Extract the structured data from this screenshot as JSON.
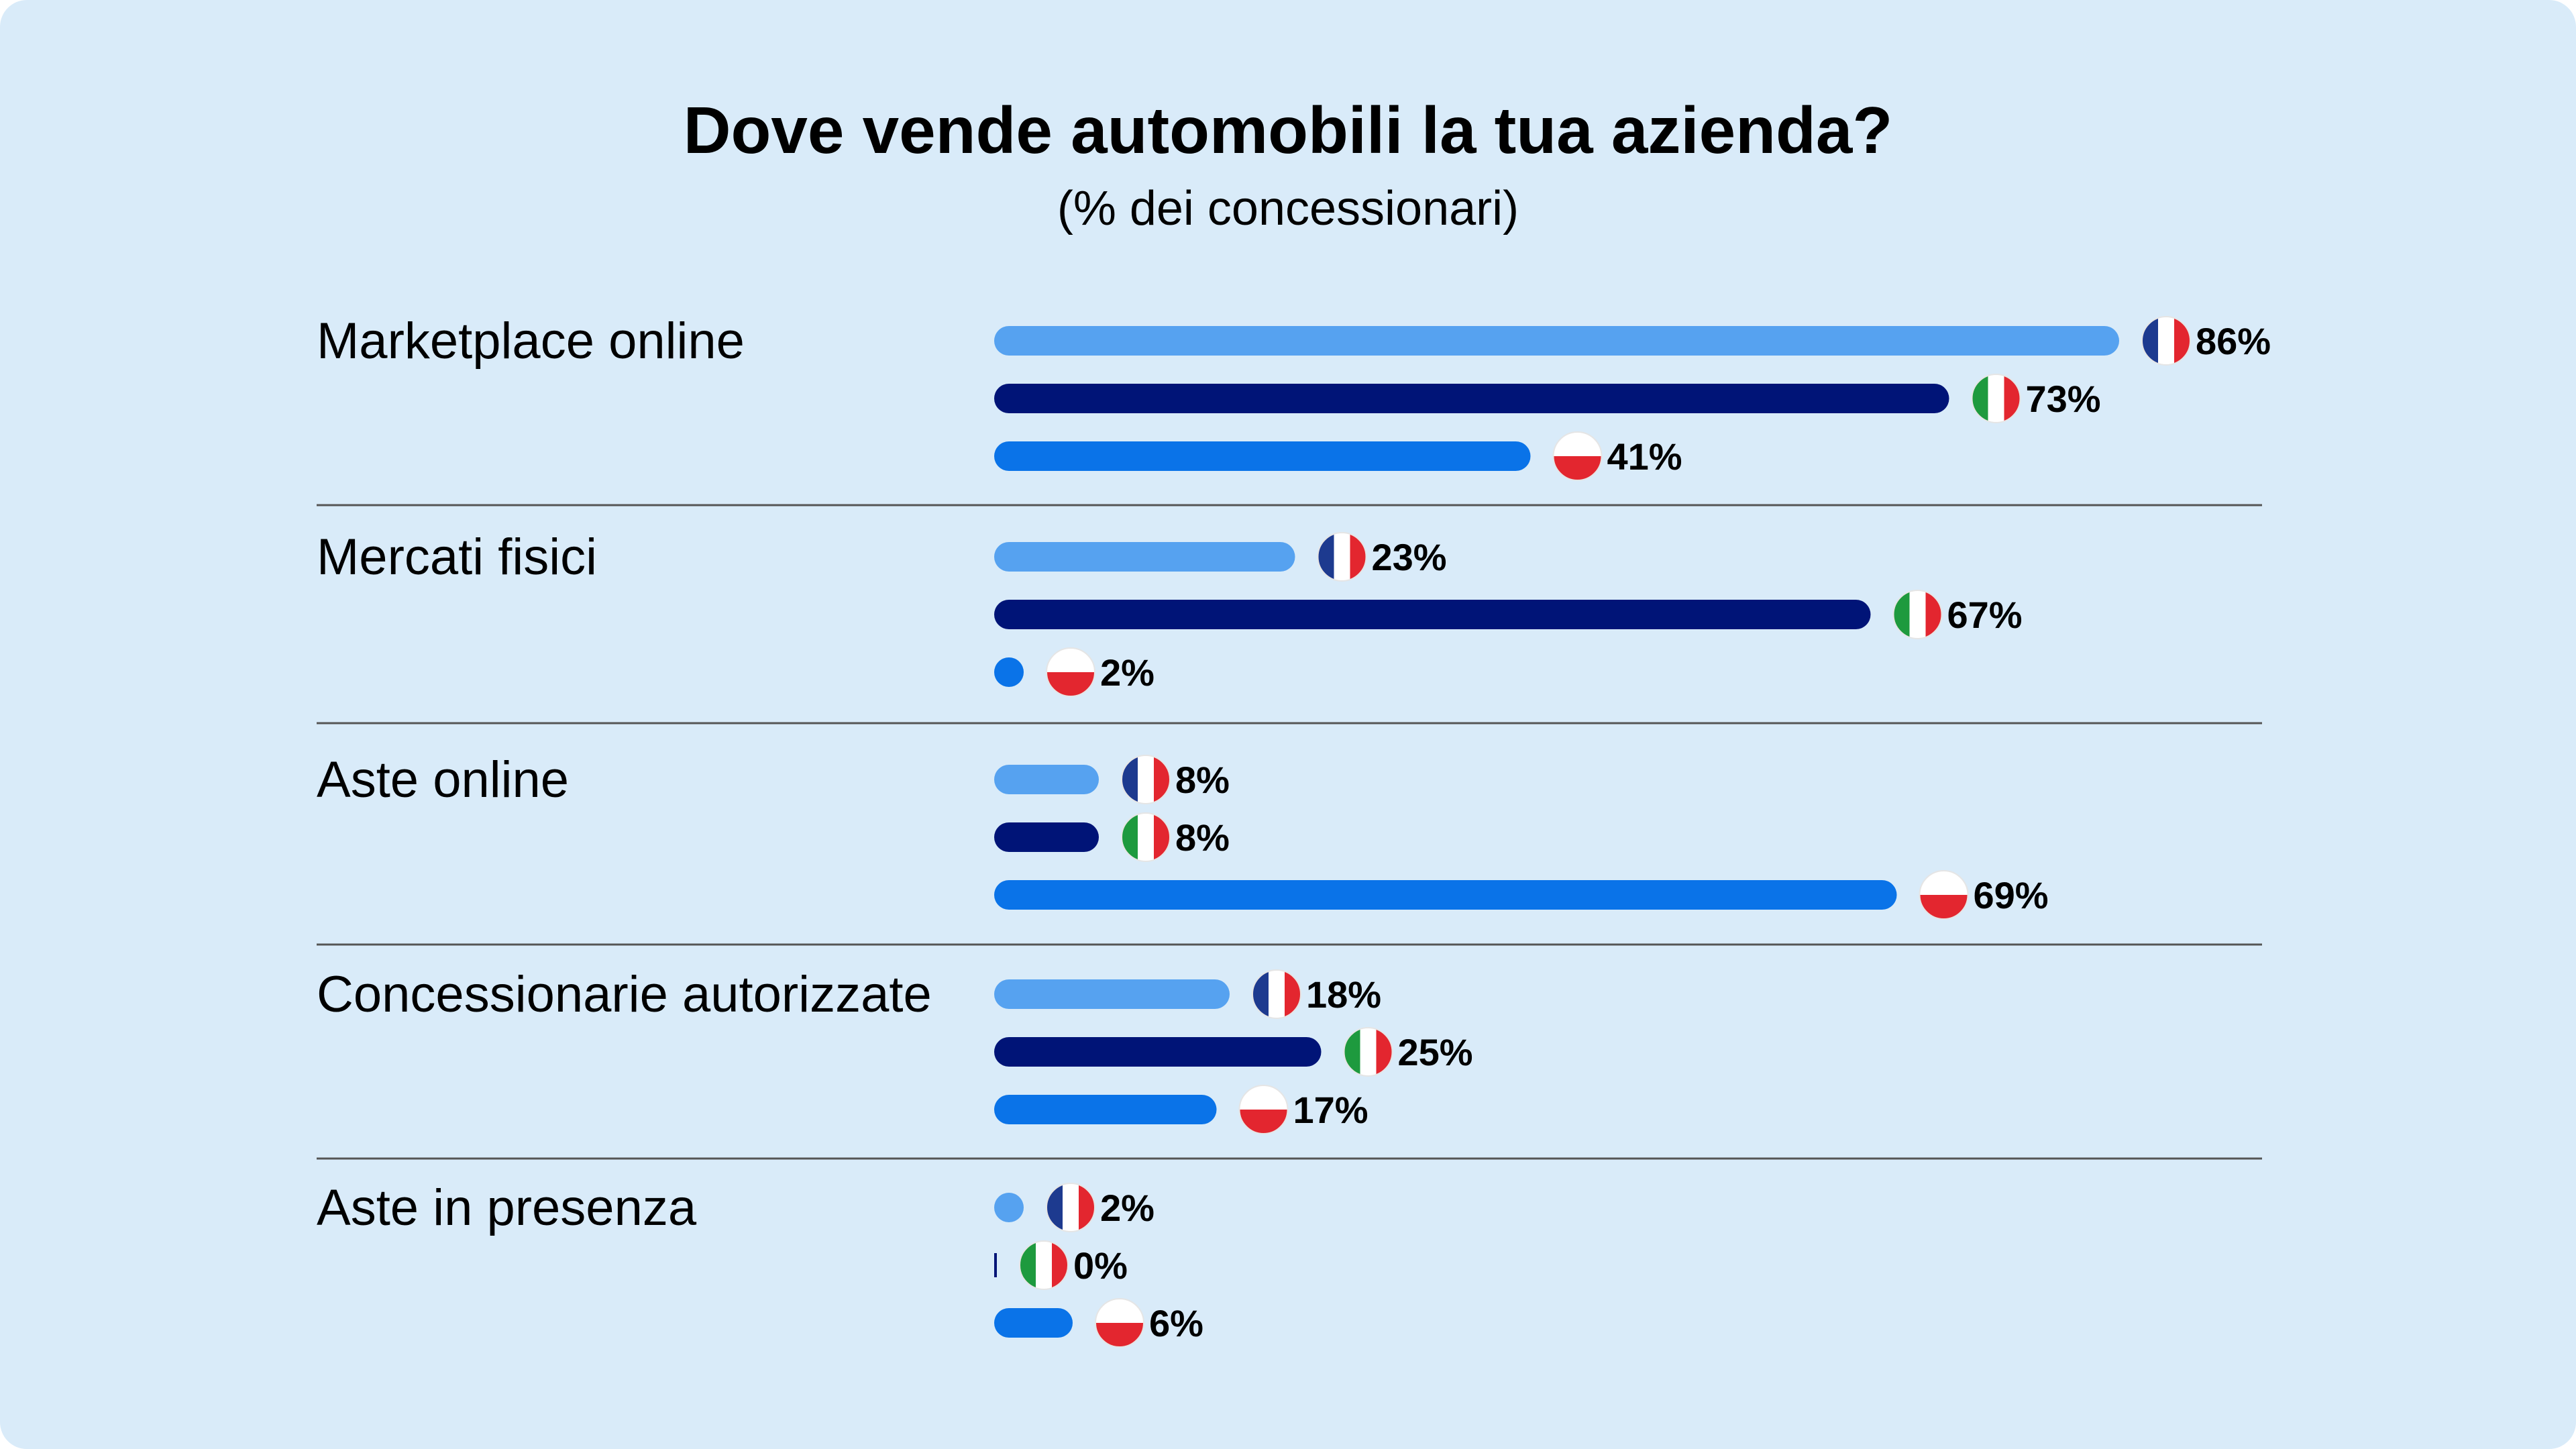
{
  "title": "Dove vende automobili la tua azienda?",
  "subtitle": "(% dei concessionari)",
  "chart_data": {
    "type": "bar",
    "orientation": "horizontal",
    "title": "Dove vende automobili la tua azienda?",
    "subtitle": "(% dei concessionari)",
    "categories": [
      "Marketplace online",
      "Mercati fisici",
      "Aste online",
      "Concessionarie autorizzate",
      "Aste in presenza"
    ],
    "series": [
      {
        "country": "France",
        "flag": "fr-flag-icon",
        "color": "#56a2f0",
        "values": [
          86,
          23,
          8,
          18,
          2
        ]
      },
      {
        "country": "Italy",
        "flag": "it-flag-icon",
        "color": "#001477",
        "values": [
          73,
          67,
          8,
          25,
          0
        ]
      },
      {
        "country": "Poland",
        "flag": "pl-flag-icon",
        "color": "#0a73e8",
        "values": [
          41,
          2,
          69,
          17,
          6
        ]
      }
    ],
    "value_suffix": "%",
    "xlim": [
      0,
      100
    ],
    "grid": false,
    "legend": "none (flag icons next to each bar)"
  }
}
